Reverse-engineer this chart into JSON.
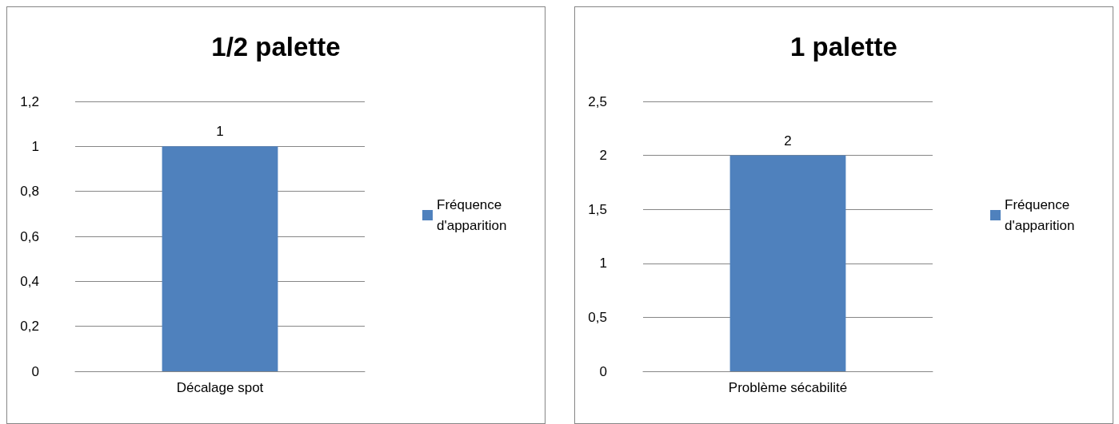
{
  "chart_data": [
    {
      "type": "bar",
      "title": "1/2 palette",
      "categories": [
        "Décalage spot"
      ],
      "series": [
        {
          "name": "Fréquence d'apparition",
          "color": "#4f81bd",
          "values": [
            1
          ]
        }
      ],
      "ylim": [
        0,
        1.2
      ],
      "yticks": [
        0,
        {
          "value": 0.2,
          "label": "0,2"
        },
        {
          "value": 0.4,
          "label": "0,4"
        },
        {
          "value": 0.6,
          "label": "0,6"
        },
        {
          "value": 0.8,
          "label": "0,8"
        },
        1,
        {
          "value": 1.2,
          "label": "1,2"
        }
      ],
      "grid": "y",
      "legend": "right",
      "data_labels": true
    },
    {
      "type": "bar",
      "title": "1 palette",
      "categories": [
        "Problème sécabilité"
      ],
      "series": [
        {
          "name": "Fréquence d'apparition",
          "color": "#4f81bd",
          "values": [
            2
          ]
        }
      ],
      "ylim": [
        0,
        2.5
      ],
      "yticks": [
        0,
        {
          "value": 0.5,
          "label": "0,5"
        },
        1,
        {
          "value": 1.5,
          "label": "1,5"
        },
        2,
        {
          "value": 2.5,
          "label": "2,5"
        }
      ],
      "grid": "y",
      "legend": "right",
      "data_labels": true
    }
  ]
}
